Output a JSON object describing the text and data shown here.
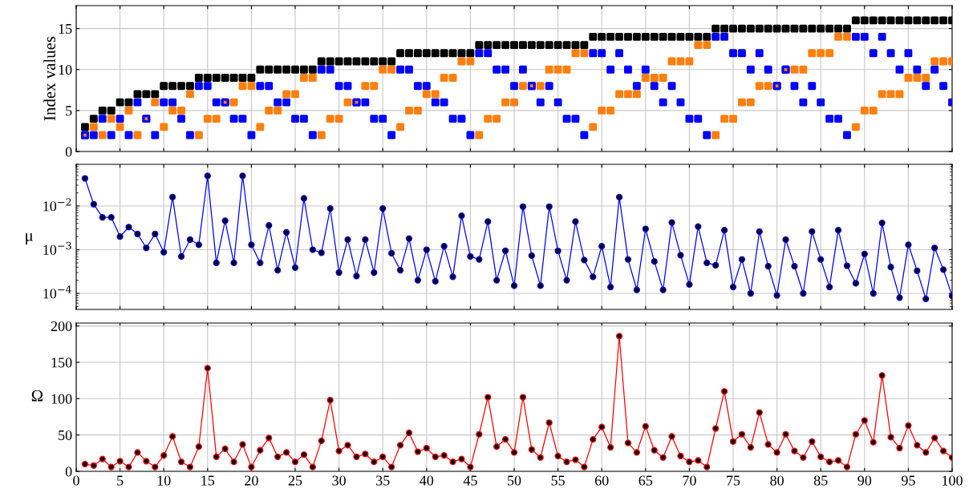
{
  "chart_data": [
    {
      "type": "scatter",
      "ylabel": "Index values",
      "x": [
        1,
        2,
        3,
        4,
        5,
        6,
        7,
        8,
        9,
        10,
        11,
        12,
        13,
        14,
        15,
        16,
        17,
        18,
        19,
        20,
        21,
        22,
        23,
        24,
        25,
        26,
        27,
        28,
        29,
        30,
        31,
        32,
        33,
        34,
        35,
        36,
        37,
        38,
        39,
        40,
        41,
        42,
        43,
        44,
        45,
        46,
        47,
        48,
        49,
        50,
        51,
        52,
        53,
        54,
        55,
        56,
        57,
        58,
        59,
        60,
        61,
        62,
        63,
        64,
        65,
        66,
        67,
        68,
        69,
        70,
        71,
        72,
        73,
        74,
        75,
        76,
        77,
        78,
        79,
        80,
        81,
        82,
        83,
        84,
        85,
        86,
        87,
        88,
        89,
        90,
        91,
        92,
        93,
        94,
        95,
        96,
        97,
        98,
        99,
        100
      ],
      "series": [
        {
          "color": "#000000",
          "values": [
            3,
            4,
            5,
            5,
            6,
            6,
            7,
            7,
            7,
            8,
            8,
            8,
            8,
            9,
            9,
            9,
            9,
            9,
            9,
            9,
            10,
            10,
            10,
            10,
            10,
            10,
            10,
            11,
            11,
            11,
            11,
            11,
            11,
            11,
            11,
            11,
            12,
            12,
            12,
            12,
            12,
            12,
            12,
            12,
            12,
            13,
            13,
            13,
            13,
            13,
            13,
            13,
            13,
            13,
            13,
            13,
            13,
            13,
            14,
            14,
            14,
            14,
            14,
            14,
            14,
            14,
            14,
            14,
            14,
            14,
            14,
            14,
            15,
            15,
            15,
            15,
            15,
            15,
            15,
            15,
            15,
            15,
            15,
            15,
            15,
            15,
            15,
            15,
            16,
            16,
            16,
            16,
            16,
            16,
            16,
            16,
            16,
            16,
            16,
            16
          ]
        },
        {
          "color": "#0000ff",
          "values": [
            2,
            2,
            4,
            2,
            4,
            2,
            6,
            4,
            2,
            6,
            6,
            4,
            2,
            8,
            8,
            6,
            6,
            4,
            4,
            2,
            8,
            8,
            6,
            6,
            4,
            4,
            2,
            10,
            10,
            8,
            8,
            6,
            6,
            4,
            4,
            2,
            10,
            10,
            8,
            8,
            6,
            6,
            4,
            4,
            2,
            12,
            12,
            10,
            10,
            8,
            10,
            8,
            6,
            8,
            6,
            4,
            4,
            2,
            12,
            12,
            10,
            12,
            10,
            8,
            10,
            8,
            6,
            8,
            6,
            4,
            4,
            2,
            14,
            14,
            12,
            12,
            10,
            12,
            10,
            8,
            10,
            8,
            6,
            8,
            6,
            4,
            4,
            2,
            14,
            14,
            12,
            14,
            12,
            10,
            12,
            10,
            8,
            10,
            8,
            6
          ]
        },
        {
          "color": "#ff7f0e",
          "values": [
            2,
            3,
            2,
            4,
            3,
            5,
            2,
            4,
            6,
            3,
            5,
            5,
            7,
            2,
            4,
            4,
            6,
            6,
            8,
            8,
            3,
            5,
            5,
            7,
            7,
            9,
            9,
            2,
            4,
            4,
            6,
            6,
            8,
            8,
            10,
            10,
            3,
            5,
            5,
            7,
            7,
            9,
            9,
            11,
            11,
            2,
            4,
            4,
            6,
            6,
            8,
            8,
            8,
            10,
            10,
            10,
            12,
            12,
            3,
            5,
            5,
            7,
            7,
            7,
            9,
            9,
            9,
            11,
            11,
            11,
            13,
            13,
            2,
            4,
            4,
            6,
            6,
            8,
            8,
            8,
            10,
            10,
            10,
            12,
            12,
            12,
            14,
            14,
            3,
            5,
            5,
            7,
            7,
            7,
            9,
            9,
            9,
            11,
            11,
            11
          ]
        }
      ],
      "xlim": [
        0,
        100
      ],
      "ylim": [
        0,
        17.8
      ],
      "yticks": [
        0,
        5,
        10,
        15
      ],
      "xticks": [
        {
          "value": 0,
          "label": null
        },
        {
          "value": 5,
          "label": null
        },
        {
          "value": 10,
          "label": null
        },
        {
          "value": 15,
          "label": null
        },
        {
          "value": 20,
          "label": null
        },
        {
          "value": 25,
          "label": null
        },
        {
          "value": 30,
          "label": null
        },
        {
          "value": 35,
          "label": null
        },
        {
          "value": 40,
          "label": null
        },
        {
          "value": 45,
          "label": null
        },
        {
          "value": 50,
          "label": null
        },
        {
          "value": 55,
          "label": null
        },
        {
          "value": 60,
          "label": null
        },
        {
          "value": 65,
          "label": null
        },
        {
          "value": 70,
          "label": null
        },
        {
          "value": 75,
          "label": null
        },
        {
          "value": 80,
          "label": null
        },
        {
          "value": 85,
          "label": null
        },
        {
          "value": 90,
          "label": null
        },
        {
          "value": 95,
          "label": null
        },
        {
          "value": 100,
          "label": null
        }
      ],
      "tick_labels": "y",
      "grid": true,
      "marker": "square"
    },
    {
      "type": "line",
      "ylabel": "μ",
      "x": [
        1,
        2,
        3,
        4,
        5,
        6,
        7,
        8,
        9,
        10,
        11,
        12,
        13,
        14,
        15,
        16,
        17,
        18,
        19,
        20,
        21,
        22,
        23,
        24,
        25,
        26,
        27,
        28,
        29,
        30,
        31,
        32,
        33,
        34,
        35,
        36,
        37,
        38,
        39,
        40,
        41,
        42,
        43,
        44,
        45,
        46,
        47,
        48,
        49,
        50,
        51,
        52,
        53,
        54,
        55,
        56,
        57,
        58,
        59,
        60,
        61,
        62,
        63,
        64,
        65,
        66,
        67,
        68,
        69,
        70,
        71,
        72,
        73,
        74,
        75,
        76,
        77,
        78,
        79,
        80,
        81,
        82,
        83,
        84,
        85,
        86,
        87,
        88,
        89,
        90,
        91,
        92,
        93,
        94,
        95,
        96,
        97,
        98,
        99,
        100
      ],
      "series": [
        {
          "color": "#0000ff",
          "values": [
            0.043,
            0.011,
            0.0055,
            0.0055,
            0.002,
            0.0033,
            0.0023,
            0.0011,
            0.0023,
            0.00088,
            0.016,
            0.0007,
            0.0017,
            0.0013,
            0.049,
            0.0005,
            0.0046,
            0.0005,
            0.049,
            0.0013,
            0.0005,
            0.0036,
            0.00034,
            0.0025,
            0.00039,
            0.015,
            0.001,
            0.00085,
            0.0088,
            0.0003,
            0.0017,
            0.00025,
            0.0017,
            0.0003,
            0.0088,
            0.00083,
            0.00034,
            0.0018,
            0.0002,
            0.001,
            0.00019,
            0.0012,
            0.00024,
            0.006,
            0.0007,
            0.0006,
            0.0044,
            0.0002,
            0.00095,
            0.00015,
            0.0097,
            0.00073,
            0.00015,
            0.0097,
            0.00094,
            0.0002,
            0.0044,
            0.00058,
            0.00024,
            0.0012,
            0.00014,
            0.016,
            0.0006,
            0.00012,
            0.003,
            0.00054,
            0.00012,
            0.0042,
            0.00075,
            0.00016,
            0.0034,
            0.0005,
            0.00044,
            0.0028,
            0.00014,
            0.0006,
            0.0001,
            0.0026,
            0.00042,
            9e-05,
            0.0017,
            0.00042,
            0.0001,
            0.0026,
            0.0006,
            0.00014,
            0.0028,
            0.00043,
            0.00017,
            0.0008,
            0.0001,
            0.0041,
            0.0004,
            8e-05,
            0.0013,
            0.00033,
            7.5e-05,
            0.0011,
            0.00035,
            8.7e-05
          ]
        }
      ],
      "log": "y",
      "xlim": [
        0,
        100
      ],
      "ylim": [
        4.3e-05,
        0.09
      ],
      "yticks": [
        {
          "value": 0.0001,
          "label": "10$^{−4}$"
        },
        {
          "value": 0.001,
          "label": "10$^{−3}$"
        },
        {
          "value": 0.01,
          "label": "10$^{−2}$"
        }
      ],
      "xticks": [
        {
          "value": 0,
          "label": null
        },
        {
          "value": 5,
          "label": null
        },
        {
          "value": 10,
          "label": null
        },
        {
          "value": 15,
          "label": null
        },
        {
          "value": 20,
          "label": null
        },
        {
          "value": 25,
          "label": null
        },
        {
          "value": 30,
          "label": null
        },
        {
          "value": 35,
          "label": null
        },
        {
          "value": 40,
          "label": null
        },
        {
          "value": 45,
          "label": null
        },
        {
          "value": 50,
          "label": null
        },
        {
          "value": 55,
          "label": null
        },
        {
          "value": 60,
          "label": null
        },
        {
          "value": 65,
          "label": null
        },
        {
          "value": 70,
          "label": null
        },
        {
          "value": 75,
          "label": null
        },
        {
          "value": 80,
          "label": null
        },
        {
          "value": 85,
          "label": null
        },
        {
          "value": 90,
          "label": null
        },
        {
          "value": 95,
          "label": null
        },
        {
          "value": 100,
          "label": null
        }
      ],
      "tick_labels": "y",
      "grid": true,
      "marker": "circle",
      "line_style": "solid"
    },
    {
      "type": "line",
      "ylabel": "Ω",
      "x": [
        1,
        2,
        3,
        4,
        5,
        6,
        7,
        8,
        9,
        10,
        11,
        12,
        13,
        14,
        15,
        16,
        17,
        18,
        19,
        20,
        21,
        22,
        23,
        24,
        25,
        26,
        27,
        28,
        29,
        30,
        31,
        32,
        33,
        34,
        35,
        36,
        37,
        38,
        39,
        40,
        41,
        42,
        43,
        44,
        45,
        46,
        47,
        48,
        49,
        50,
        51,
        52,
        53,
        54,
        55,
        56,
        57,
        58,
        59,
        60,
        61,
        62,
        63,
        64,
        65,
        66,
        67,
        68,
        69,
        70,
        71,
        72,
        73,
        74,
        75,
        76,
        77,
        78,
        79,
        80,
        81,
        82,
        83,
        84,
        85,
        86,
        87,
        88,
        89,
        90,
        91,
        92,
        93,
        94,
        95,
        96,
        97,
        98,
        99,
        100
      ],
      "series": [
        {
          "color": "#ff0000",
          "values": [
            10,
            8,
            17,
            6,
            14,
            6,
            26,
            14,
            6,
            22,
            48,
            13,
            6,
            34,
            142,
            20,
            31,
            13,
            37,
            6,
            29,
            46,
            20,
            26,
            13,
            23,
            6,
            42,
            98,
            28,
            36,
            20,
            24,
            13,
            20,
            6,
            36,
            53,
            27,
            32,
            20,
            22,
            13,
            17,
            6,
            51,
            102,
            34,
            44,
            26,
            102,
            30,
            19,
            67,
            21,
            13,
            16,
            6,
            44,
            61,
            33,
            186,
            39,
            26,
            62,
            29,
            19,
            48,
            21,
            13,
            15,
            6,
            59,
            110,
            41,
            51,
            33,
            81,
            37,
            26,
            51,
            28,
            19,
            41,
            20,
            13,
            15,
            6,
            51,
            70,
            40,
            132,
            47,
            32,
            63,
            36,
            26,
            46,
            28,
            19
          ]
        }
      ],
      "xlim": [
        0,
        100
      ],
      "ylim": [
        0,
        204
      ],
      "yticks": [
        0,
        50,
        100,
        150,
        200
      ],
      "xticks": [
        0,
        5,
        10,
        15,
        20,
        25,
        30,
        35,
        40,
        45,
        50,
        55,
        60,
        65,
        70,
        75,
        80,
        85,
        90,
        95,
        100
      ],
      "grid": true,
      "marker": "circle",
      "line_style": "solid"
    }
  ]
}
